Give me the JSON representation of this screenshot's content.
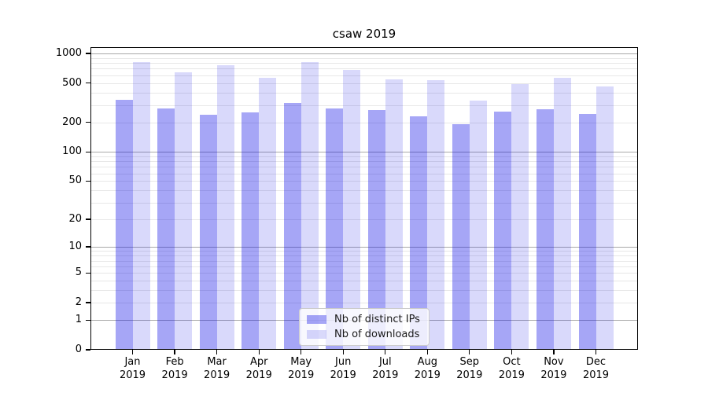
{
  "figure": {
    "background": "#ffffff",
    "frame_color": "#000000"
  },
  "chart_data": {
    "type": "bar",
    "title": "csaw 2019",
    "categories": [
      "Jan 2019",
      "Feb 2019",
      "Mar 2019",
      "Apr 2019",
      "May 2019",
      "Jun 2019",
      "Jul 2019",
      "Aug 2019",
      "Sep 2019",
      "Oct 2019",
      "Nov 2019",
      "Dec 2019"
    ],
    "series": [
      {
        "name": "Nb of distinct IPs",
        "color": "rgba(0,0,230,0.35)",
        "color_hex_on_white": "#a6a6f6",
        "values": [
          338,
          278,
          237,
          253,
          314,
          277,
          267,
          230,
          192,
          255,
          272,
          243
        ]
      },
      {
        "name": "Nb of downloads",
        "color": "rgba(0,0,230,0.15)",
        "color_hex_on_white": "#d9d9fb",
        "values": [
          825,
          646,
          761,
          562,
          815,
          675,
          551,
          537,
          335,
          485,
          565,
          461
        ]
      }
    ],
    "y_axis": {
      "scale": "log10(value+1)",
      "tick_labels": [
        0,
        1,
        2,
        5,
        10,
        20,
        50,
        100,
        200,
        500,
        1000
      ],
      "ylim": [
        0,
        1158
      ]
    },
    "x_axis": {
      "tick_label_lines": 2
    },
    "grid": {
      "major_color": "#a9a9a9",
      "minor_color": "#e7e7e7",
      "major_at": [
        1,
        10,
        100,
        1000
      ]
    },
    "legend": {
      "position": "lower-center",
      "background": "rgba(255,255,255,0.8)",
      "border_color": "#cccccc"
    }
  }
}
